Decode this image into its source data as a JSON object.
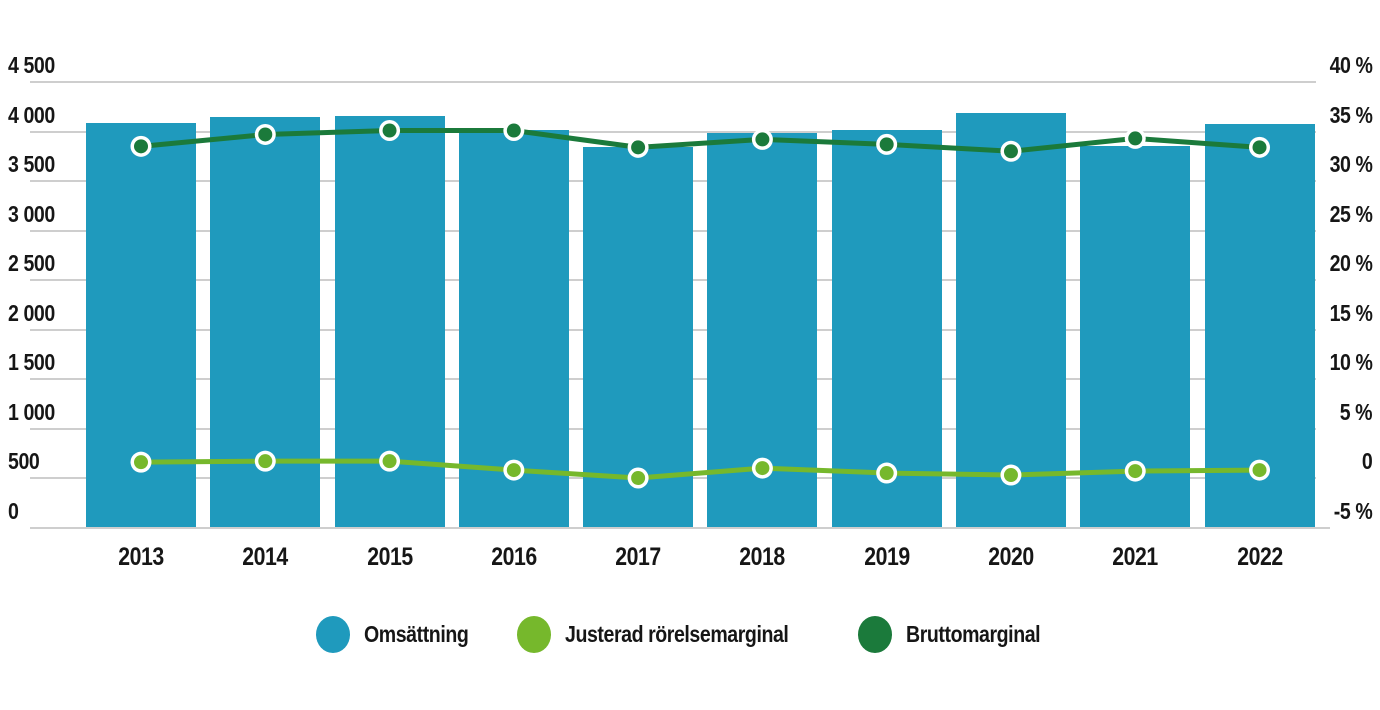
{
  "chart_data": {
    "type": "bar",
    "subtype": "combo-bar-line-dual-axis",
    "title": "",
    "categories": [
      "2013",
      "2014",
      "2015",
      "2016",
      "2017",
      "2018",
      "2019",
      "2020",
      "2021",
      "2022"
    ],
    "series": [
      {
        "name": "Omsättning",
        "type": "bar",
        "axis": "left",
        "color": "#1F9ABD",
        "values": [
          4090,
          4150,
          4160,
          4020,
          3845,
          3985,
          4015,
          4190,
          3855,
          4075
        ]
      },
      {
        "name": "Justerad rörelsemarginal",
        "type": "line",
        "axis": "right",
        "color": "#76B82C",
        "values": [
          1.6,
          1.7,
          1.7,
          0.8,
          0.0,
          1.0,
          0.5,
          0.3,
          0.7,
          0.8
        ]
      },
      {
        "name": "Bruttomarginal",
        "type": "line",
        "axis": "right",
        "color": "#1B7A3B",
        "values": [
          33.5,
          34.7,
          35.1,
          35.1,
          33.4,
          34.2,
          33.7,
          33.0,
          34.3,
          33.4
        ]
      }
    ],
    "left_axis": {
      "min": 0,
      "max": 4500,
      "step": 500,
      "tick_labels": [
        "4 500",
        "4 000",
        "3 500",
        "3 000",
        "2 500",
        "2 000",
        "1 500",
        "1 000",
        "500",
        "0"
      ]
    },
    "right_axis": {
      "min": -5,
      "max": 40,
      "step": 5,
      "tick_labels": [
        "40 %",
        "35 %",
        "30 %",
        "25 %",
        "20 %",
        "15 %",
        "10 %",
        "5 %",
        "0",
        "-5 %"
      ]
    },
    "grid": "horizontal",
    "legend_position": "bottom",
    "legend": [
      {
        "label": "Omsättning",
        "color": "#1F9ABD"
      },
      {
        "label": "Justerad rörelsemarginal",
        "color": "#76B82C"
      },
      {
        "label": "Bruttomarginal",
        "color": "#1B7A3B"
      }
    ]
  },
  "colors": {
    "bar": "#1F9ABD",
    "line_adjusted_margin": "#76B82C",
    "line_gross_margin": "#1B7A3B",
    "gridline": "#CECECE",
    "text": "#161616",
    "background": "#FFFFFF",
    "marker_ring": "#FFFFFF"
  }
}
